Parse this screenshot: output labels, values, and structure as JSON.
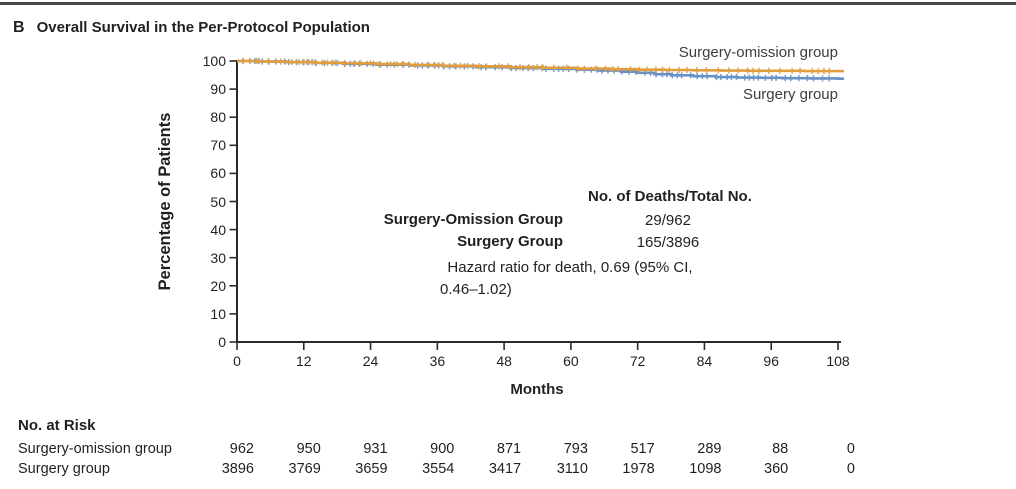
{
  "panel": {
    "letter": "B",
    "title": "Overall Survival in the Per-Protocol Population"
  },
  "chart_data": {
    "type": "line",
    "subtype": "kaplan-meier-step",
    "title": "Overall Survival in the Per-Protocol Population",
    "xlabel": "Months",
    "ylabel": "Percentage of Patients",
    "xlim": [
      0,
      108
    ],
    "ylim": [
      0,
      100
    ],
    "xticks": [
      0,
      12,
      24,
      36,
      48,
      60,
      72,
      84,
      96,
      108
    ],
    "yticks": [
      0,
      10,
      20,
      30,
      40,
      50,
      60,
      70,
      80,
      90,
      100
    ],
    "grid": false,
    "legend_position": "end-of-curve",
    "axis_color": "#2b2b2b",
    "series": [
      {
        "name": "Surgery-omission group",
        "color": "#e29e3d",
        "x": [
          0,
          4,
          9,
          14,
          19,
          25,
          31,
          37,
          43,
          49,
          55,
          61,
          67,
          72,
          77,
          82,
          87,
          92,
          97,
          102,
          108
        ],
        "y": [
          100,
          99.8,
          99.6,
          99.4,
          99.2,
          98.9,
          98.6,
          98.3,
          98.1,
          97.8,
          97.6,
          97.3,
          97.1,
          96.9,
          96.8,
          96.7,
          96.6,
          96.5,
          96.5,
          96.4,
          96.4
        ]
      },
      {
        "name": "Surgery group",
        "color": "#6792c9",
        "x": [
          0,
          4,
          9,
          14,
          19,
          25,
          31,
          37,
          43,
          49,
          55,
          61,
          65,
          69,
          72,
          75,
          78,
          82,
          86,
          90,
          94,
          98,
          103,
          108
        ],
        "y": [
          100,
          99.8,
          99.6,
          99.3,
          99.0,
          98.7,
          98.4,
          98.1,
          97.8,
          97.5,
          97.2,
          96.9,
          96.6,
          96.2,
          95.8,
          95.3,
          94.9,
          94.6,
          94.3,
          94.1,
          94.0,
          93.9,
          93.8,
          93.7
        ]
      }
    ],
    "annotations": {
      "deaths_header": "No. of Deaths/Total No.",
      "rows": [
        {
          "label": "Surgery-Omission Group",
          "value": "29/962"
        },
        {
          "label": "Surgery Group",
          "value": "165/3896"
        }
      ],
      "hazard_line1": "Hazard ratio for death, 0.69 (95% CI,",
      "hazard_line2": "0.46–1.02)"
    }
  },
  "risk_table": {
    "title": "No. at Risk",
    "rows": [
      {
        "label": "Surgery-omission group",
        "values": [
          962,
          950,
          931,
          900,
          871,
          793,
          517,
          289,
          88,
          0
        ]
      },
      {
        "label": "Surgery group",
        "values": [
          3896,
          3769,
          3659,
          3554,
          3417,
          3110,
          1978,
          1098,
          360,
          0
        ]
      }
    ]
  }
}
